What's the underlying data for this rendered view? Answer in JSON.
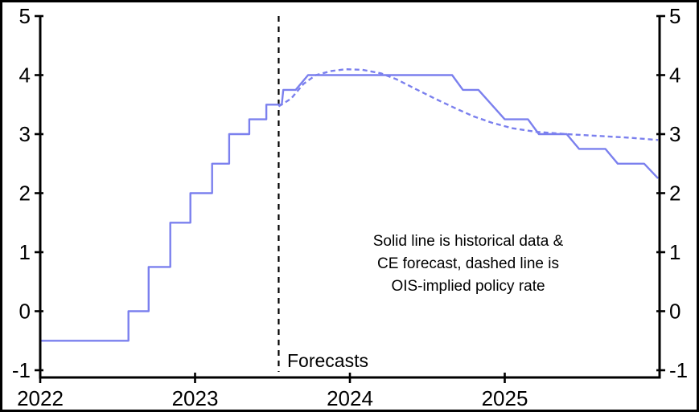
{
  "chart_data": {
    "type": "line",
    "title": "",
    "xlabel": "",
    "ylabel": "",
    "x_axis": {
      "range": [
        2022,
        2026
      ],
      "tick_values": [
        2022,
        2023,
        2024,
        2025
      ],
      "tick_labels": [
        "2022",
        "2023",
        "2024",
        "2025"
      ]
    },
    "y_axis": {
      "range": [
        -1,
        5
      ],
      "tick_values": [
        5,
        4,
        3,
        2,
        1,
        0,
        -1
      ],
      "tick_labels": [
        "5",
        "4",
        "3",
        "2",
        "1",
        "0",
        "-1"
      ],
      "dual_sided": true
    },
    "grid": false,
    "legend": "none",
    "series": [
      {
        "name": "Historical data & CE forecast",
        "style": "solid",
        "color": "#7b80ee",
        "points": [
          [
            2022.0,
            -0.5
          ],
          [
            2022.57,
            -0.5
          ],
          [
            2022.57,
            0.0
          ],
          [
            2022.7,
            0.0
          ],
          [
            2022.7,
            0.75
          ],
          [
            2022.84,
            0.75
          ],
          [
            2022.84,
            1.5
          ],
          [
            2022.97,
            1.5
          ],
          [
            2022.97,
            2.0
          ],
          [
            2023.11,
            2.0
          ],
          [
            2023.11,
            2.5
          ],
          [
            2023.22,
            2.5
          ],
          [
            2023.22,
            3.0
          ],
          [
            2023.35,
            3.0
          ],
          [
            2023.35,
            3.25
          ],
          [
            2023.46,
            3.25
          ],
          [
            2023.46,
            3.5
          ],
          [
            2023.56,
            3.5
          ],
          [
            2023.57,
            3.75
          ],
          [
            2023.65,
            3.75
          ],
          [
            2023.73,
            4.0
          ],
          [
            2024.66,
            4.0
          ],
          [
            2024.73,
            3.75
          ],
          [
            2024.83,
            3.75
          ],
          [
            2025.0,
            3.25
          ],
          [
            2025.15,
            3.25
          ],
          [
            2025.22,
            3.0
          ],
          [
            2025.4,
            3.0
          ],
          [
            2025.48,
            2.75
          ],
          [
            2025.65,
            2.75
          ],
          [
            2025.73,
            2.5
          ],
          [
            2025.9,
            2.5
          ],
          [
            2025.99,
            2.25
          ]
        ]
      },
      {
        "name": "OIS-implied policy rate",
        "style": "dashed",
        "color": "#7b80ee",
        "points": [
          [
            2023.54,
            3.47
          ],
          [
            2023.62,
            3.6
          ],
          [
            2023.7,
            3.85
          ],
          [
            2023.78,
            4.0
          ],
          [
            2023.88,
            4.07
          ],
          [
            2023.97,
            4.1
          ],
          [
            2024.08,
            4.09
          ],
          [
            2024.2,
            4.03
          ],
          [
            2024.3,
            3.93
          ],
          [
            2024.42,
            3.77
          ],
          [
            2024.55,
            3.6
          ],
          [
            2024.68,
            3.44
          ],
          [
            2024.8,
            3.3
          ],
          [
            2024.92,
            3.19
          ],
          [
            2025.05,
            3.1
          ],
          [
            2025.2,
            3.04
          ],
          [
            2025.4,
            3.0
          ],
          [
            2025.6,
            2.97
          ],
          [
            2025.8,
            2.94
          ],
          [
            2025.99,
            2.9
          ]
        ]
      }
    ],
    "forecast_line": {
      "x": 2023.54,
      "label": "Forecasts",
      "color": "#000000",
      "style": "dashed"
    },
    "annotation": {
      "lines": [
        "Solid line is historical data &",
        "CE forecast, dashed line is",
        "OIS-implied policy rate"
      ]
    },
    "colors": {
      "line": "#7b80ee",
      "axis": "#000000",
      "background": "#ffffff"
    }
  }
}
